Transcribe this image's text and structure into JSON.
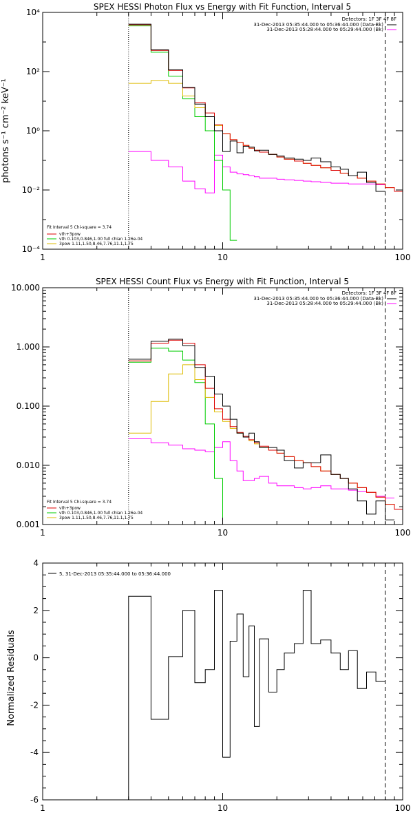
{
  "colors": {
    "data": "#000000",
    "background": "#ff00ff",
    "thermal": "#00cc00",
    "nonthermal": "#ddbb00",
    "total": "#dd0000",
    "axes": "#000000"
  },
  "chart_data": [
    {
      "type": "line",
      "title": "SPEX HESSI Photon Flux vs Energy with Fit Function, Interval 5",
      "xlabel": "",
      "ylabel": "photons s⁻¹ cm⁻² keV⁻¹",
      "xscale": "log",
      "yscale": "log",
      "xlim": [
        1,
        100
      ],
      "ylim": [
        0.0001,
        10000
      ],
      "xticks": [
        "1",
        "10",
        "100"
      ],
      "yticks": [
        "10⁻⁴",
        "10⁻²",
        "10⁰",
        "10²",
        "10⁴"
      ],
      "legend_placement": "top-right",
      "header": "Detectors: 1F 3F 4F 8F",
      "legend": [
        "31-Dec-2013 05:35:44.000 to 05:36:44.000 (Data-Bk)",
        "31-Dec-2013 05:28:44.000 to 05:29:44.000 (Bk)"
      ],
      "notes": [
        "Fit Interval 5   Chi-square = 3.74",
        "vth+3pow",
        "vth 0.103,0.846,1.00  full chian 1.26e-04",
        "3pow 1.11,1.50,8.46,7.76,11.1,1.75"
      ],
      "edges": [
        3,
        4,
        5,
        6,
        7,
        8,
        9,
        10,
        11,
        12,
        13,
        14,
        15,
        16,
        18,
        20,
        22,
        25,
        28,
        31,
        35,
        40,
        45,
        50,
        56,
        63,
        71,
        80,
        90,
        100
      ],
      "series": [
        {
          "name": "31-Dec-2013 05:35:44.000 to 05:36:44.000 (Data-Bk)",
          "color": "#000000",
          "values": [
            4000,
            550,
            115,
            29,
            8,
            3,
            1.0,
            0.2,
            0.45,
            0.18,
            0.3,
            0.28,
            0.21,
            0.22,
            0.16,
            0.14,
            0.12,
            0.11,
            0.1,
            0.12,
            0.09,
            0.06,
            0.05,
            0.03,
            0.04,
            0.018,
            0.009,
            null,
            null
          ]
        },
        {
          "name": "31-Dec-2013 05:28:44.000 to 05:29:44.000 (Bk)",
          "color": "#ff00ff",
          "values": [
            0.2,
            0.1,
            0.06,
            0.02,
            0.011,
            0.008,
            0.15,
            0.06,
            0.04,
            0.035,
            0.033,
            0.03,
            0.028,
            0.025,
            0.025,
            0.023,
            0.022,
            0.021,
            0.02,
            0.019,
            0.018,
            0.017,
            0.017,
            0.016,
            0.016,
            0.016,
            0.015,
            null,
            null
          ]
        },
        {
          "name": "",
          "color": "#00cc00",
          "values": [
            3500,
            450,
            70,
            12,
            3,
            1.0,
            0.1,
            0.01,
            0.0002,
            null,
            null,
            null,
            null,
            null,
            null,
            null,
            null,
            null,
            null,
            null,
            null,
            null,
            null,
            null,
            null,
            null,
            null,
            null,
            null
          ]
        },
        {
          "name": "",
          "color": "#ddbb00",
          "values": [
            40,
            50,
            40,
            15,
            6,
            3,
            1.5,
            0.8,
            0.5,
            0.4,
            0.32,
            0.26,
            0.22,
            0.19,
            0.16,
            0.13,
            0.11,
            0.095,
            0.08,
            0.068,
            0.056,
            0.046,
            0.037,
            0.03,
            0.025,
            0.02,
            0.016,
            0.012,
            0.009
          ]
        },
        {
          "name": "",
          "color": "#dd0000",
          "values": [
            3800,
            520,
            110,
            28,
            9,
            4,
            1.6,
            0.8,
            0.5,
            0.4,
            0.32,
            0.26,
            0.22,
            0.19,
            0.16,
            0.13,
            0.11,
            0.095,
            0.08,
            0.068,
            0.056,
            0.046,
            0.037,
            0.03,
            0.025,
            0.02,
            0.016,
            0.012,
            0.009
          ]
        }
      ]
    },
    {
      "type": "line",
      "title": "SPEX HESSI Count Flux vs Energy with Fit Function, Interval 5",
      "xlabel": "",
      "ylabel": "",
      "xscale": "log",
      "yscale": "log",
      "xlim": [
        1,
        100
      ],
      "ylim": [
        0.001,
        10
      ],
      "xticks": [
        "1",
        "10",
        "100"
      ],
      "yticks": [
        "0.001",
        "0.010",
        "0.100",
        "1.000",
        "10.000"
      ],
      "legend_placement": "top-right",
      "header": "Detectors: 1F 3F 4F 8F",
      "legend": [
        "31-Dec-2013 05:35:44.000 to 05:36:44.000 (Data-Bk)",
        "31-Dec-2013 05:28:44.000 to 05:29:44.000 (Bk)"
      ],
      "notes": [
        "Fit Interval 5   Chi-square = 3.74",
        "vth+3pow",
        "vth 0.103,0.846,1.00  full chian 1.26e-04",
        "3pow 1.11,1.50,8.46,7.76,11.1,1.75"
      ],
      "edges": [
        3,
        4,
        5,
        6,
        7,
        8,
        9,
        10,
        11,
        12,
        13,
        14,
        15,
        16,
        18,
        20,
        22,
        25,
        28,
        31,
        35,
        40,
        45,
        50,
        56,
        63,
        71,
        80,
        90,
        100
      ],
      "series": [
        {
          "name": "31-Dec-2013 05:35:44.000 to 05:36:44.000 (Data-Bk)",
          "color": "#000000",
          "values": [
            0.62,
            1.25,
            1.35,
            1.05,
            0.45,
            0.32,
            0.16,
            0.1,
            0.06,
            0.035,
            0.03,
            0.035,
            0.025,
            0.02,
            0.02,
            0.018,
            0.012,
            0.009,
            0.011,
            0.011,
            0.015,
            0.007,
            0.006,
            0.004,
            0.0025,
            0.0015,
            0.0025,
            0.0012,
            null
          ]
        },
        {
          "name": "31-Dec-2013 05:28:44.000 to 05:29:44.000 (Bk)",
          "color": "#ff00ff",
          "values": [
            0.028,
            0.024,
            0.022,
            0.019,
            0.018,
            0.017,
            0.02,
            0.025,
            0.012,
            0.008,
            0.0055,
            0.0055,
            0.006,
            0.0065,
            0.005,
            0.0045,
            0.0045,
            0.0042,
            0.004,
            0.0042,
            0.0045,
            0.004,
            0.004,
            0.0038,
            0.0036,
            0.0035,
            0.003,
            0.0028,
            null
          ]
        },
        {
          "name": "",
          "color": "#00cc00",
          "values": [
            0.55,
            0.95,
            0.85,
            0.6,
            0.25,
            0.05,
            0.006,
            0.0008,
            null,
            null,
            null,
            null,
            null,
            null,
            null,
            null,
            null,
            null,
            null,
            null,
            null,
            null,
            null,
            null,
            null,
            null,
            null,
            null,
            null
          ]
        },
        {
          "name": "",
          "color": "#ddbb00",
          "values": [
            0.035,
            0.12,
            0.35,
            0.5,
            0.28,
            0.14,
            0.08,
            0.055,
            0.042,
            0.035,
            0.03,
            0.026,
            0.023,
            0.02,
            0.018,
            0.016,
            0.014,
            0.012,
            0.011,
            0.0095,
            0.008,
            0.007,
            0.006,
            0.005,
            0.0042,
            0.0035,
            0.0029,
            0.0022,
            0.0018
          ]
        },
        {
          "name": "",
          "color": "#dd0000",
          "values": [
            0.58,
            1.15,
            1.3,
            1.15,
            0.5,
            0.2,
            0.09,
            0.06,
            0.045,
            0.036,
            0.031,
            0.027,
            0.024,
            0.021,
            0.018,
            0.016,
            0.014,
            0.012,
            0.011,
            0.0095,
            0.008,
            0.007,
            0.006,
            0.005,
            0.0042,
            0.0035,
            0.0029,
            0.0022,
            0.0018
          ]
        }
      ]
    },
    {
      "type": "line",
      "title": "",
      "xlabel": "",
      "ylabel": "Normalized Residuals",
      "xscale": "log",
      "yscale": "linear",
      "xlim": [
        1,
        100
      ],
      "ylim": [
        -6,
        4
      ],
      "xticks": [
        "1",
        "10",
        "100"
      ],
      "yticks": [
        "4",
        "2",
        "0",
        "-2",
        "-4",
        "-6"
      ],
      "legend_placement": "top-left",
      "legend": [
        "5, 31-Dec-2013 05:35:44.000 to 05:36:44.000"
      ],
      "edges": [
        3,
        4,
        5,
        6,
        7,
        8,
        9,
        10,
        11,
        12,
        13,
        14,
        15,
        16,
        18,
        20,
        22,
        25,
        28,
        31,
        35,
        40,
        45,
        50,
        56,
        63,
        71,
        80
      ],
      "series": [
        {
          "name": "5, 31-Dec-2013 05:35:44.000 to 05:36:44.000",
          "color": "#000000",
          "values": [
            2.6,
            -2.6,
            0.05,
            2.0,
            -1.05,
            -0.5,
            2.85,
            -4.2,
            0.7,
            1.85,
            -0.8,
            1.35,
            -2.9,
            0.8,
            -1.45,
            -0.5,
            0.2,
            0.6,
            2.85,
            0.6,
            0.75,
            0.2,
            -0.5,
            0.3,
            -1.3,
            -0.6,
            -1.0
          ]
        }
      ]
    }
  ]
}
